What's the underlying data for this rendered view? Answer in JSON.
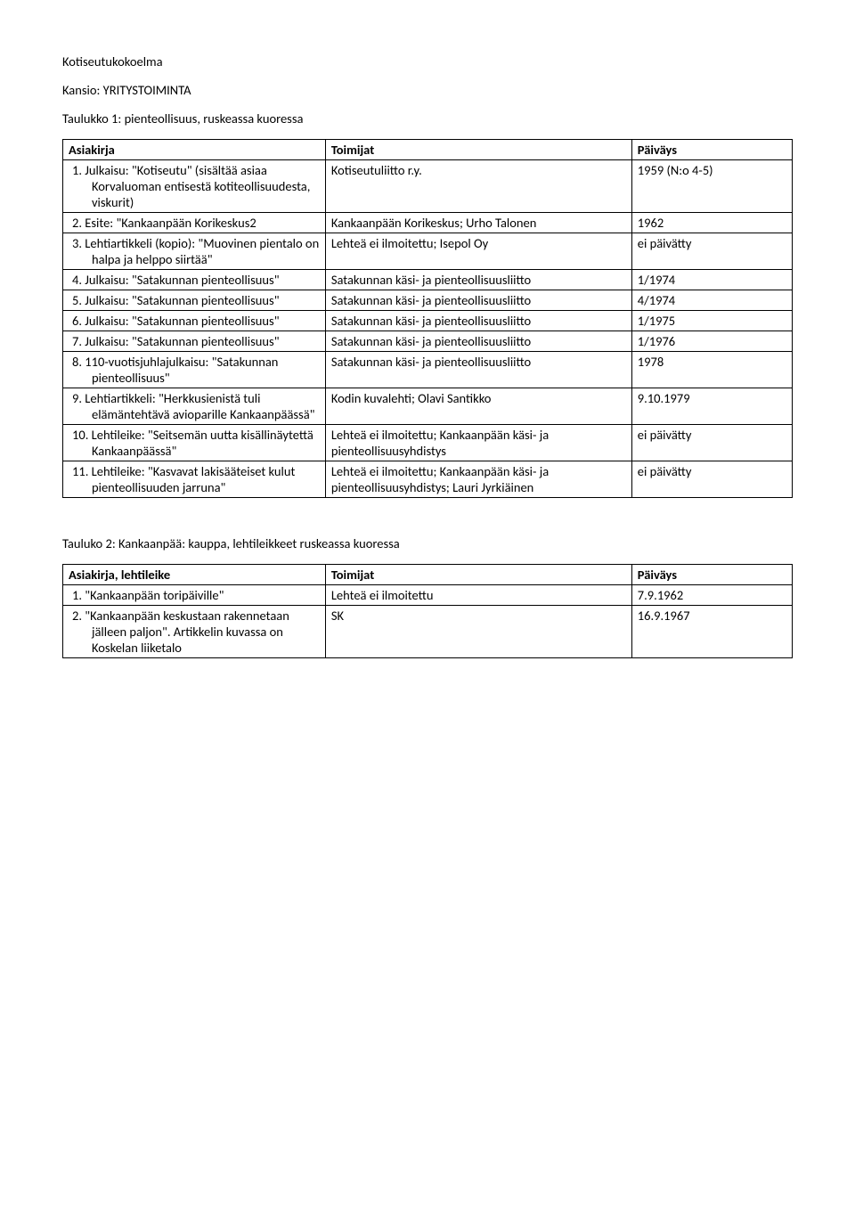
{
  "heading": "Kotiseutukokoelma",
  "subheading": "Kansio: YRITYSTOIMINTA",
  "table1": {
    "title": "Taulukko 1: pienteollisuus, ruskeassa kuoressa",
    "headers": [
      "Asiakirja",
      "Toimijat",
      "Päiväys"
    ],
    "rows": [
      {
        "n": "1.",
        "c1": "Julkaisu: \"Kotiseutu\" (sisältää asiaa Korvaluoman entisestä kotiteollisuudesta, viskurit)",
        "c2": "Kotiseutuliitto r.y.",
        "c3": "1959 (N:o 4-5)"
      },
      {
        "n": "2.",
        "c1": "Esite: \"Kankaanpään Korikeskus2",
        "c2": "Kankaanpään Korikeskus; Urho Talonen",
        "c3": "1962"
      },
      {
        "n": "3.",
        "c1": "Lehtiartikkeli (kopio): \"Muovinen pientalo on halpa ja helppo siirtää\"",
        "c2": "Lehteä ei ilmoitettu; Isepol Oy",
        "c3": "ei päivätty"
      },
      {
        "n": "4.",
        "c1": "Julkaisu: \"Satakunnan pienteollisuus\"",
        "c2": "Satakunnan käsi- ja pienteollisuusliitto",
        "c3": "1/1974"
      },
      {
        "n": "5.",
        "c1": "Julkaisu: \"Satakunnan pienteollisuus\"",
        "c2": "Satakunnan käsi- ja pienteollisuusliitto",
        "c3": "4/1974"
      },
      {
        "n": "6.",
        "c1": "Julkaisu: \"Satakunnan pienteollisuus\"",
        "c2": "Satakunnan käsi- ja pienteollisuusliitto",
        "c3": "1/1975"
      },
      {
        "n": "7.",
        "c1": "Julkaisu: \"Satakunnan pienteollisuus\"",
        "c2": "Satakunnan käsi- ja pienteollisuusliitto",
        "c3": "1/1976"
      },
      {
        "n": "8.",
        "c1": "110-vuotisjuhlajulkaisu: \"Satakunnan pienteollisuus\"",
        "c2": "Satakunnan käsi- ja pienteollisuusliitto",
        "c3": "1978"
      },
      {
        "n": "9.",
        "c1": "Lehtiartikkeli: \"Herkkusienistä tuli elämäntehtävä avioparille Kankaanpäässä\"",
        "c2": "Kodin kuvalehti; Olavi Santikko",
        "c3": "9.10.1979"
      },
      {
        "n": "10.",
        "c1": "Lehtileike: \"Seitsemän uutta kisällinäytettä Kankaanpäässä\"",
        "c2": "Lehteä ei ilmoitettu; Kankaanpään käsi- ja pienteollisuusyhdistys",
        "c3": "ei päivätty"
      },
      {
        "n": "11.",
        "c1": "Lehtileike: \"Kasvavat lakisääteiset kulut pienteollisuuden jarruna\"",
        "c2": "Lehteä ei ilmoitettu; Kankaanpään käsi- ja pienteollisuusyhdistys; Lauri Jyrkiäinen",
        "c3": "ei päivätty"
      }
    ]
  },
  "table2": {
    "title": "Tauluko 2: Kankaanpää: kauppa, lehtileikkeet ruskeassa kuoressa",
    "headers": [
      "Asiakirja, lehtileike",
      "Toimijat",
      "Päiväys"
    ],
    "rows": [
      {
        "n": "1.",
        "c1": "\"Kankaanpään toripäiville\"",
        "c2": "Lehteä ei ilmoitettu",
        "c3": "7.9.1962"
      },
      {
        "n": "2.",
        "c1": "\"Kankaanpään keskustaan rakennetaan jälleen paljon\". Artikkelin kuvassa on Koskelan liiketalo",
        "c2": "SK",
        "c3": "16.9.1967"
      }
    ]
  },
  "colors": {
    "text": "#000000",
    "background": "#ffffff",
    "border": "#000000"
  },
  "typography": {
    "font_family": "Calibri",
    "body_fontsize_pt": 11
  }
}
